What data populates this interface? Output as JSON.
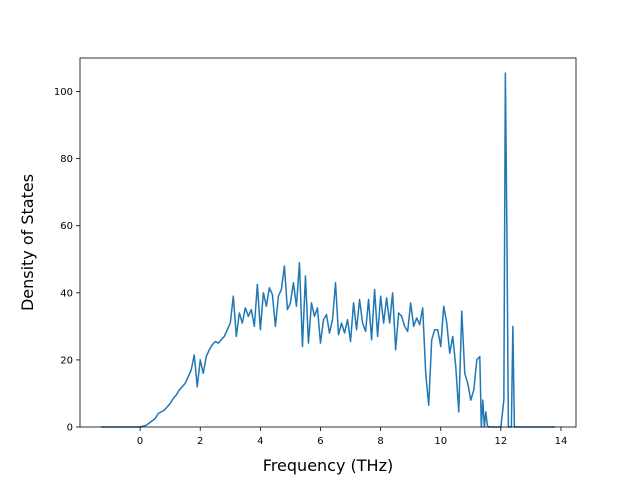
{
  "chart_data": {
    "type": "line",
    "title": "",
    "xlabel": "Frequency (THz)",
    "ylabel": "Density of States",
    "xlim": [
      -2.0,
      14.5
    ],
    "ylim": [
      0,
      110
    ],
    "xticks": [
      0,
      2,
      4,
      6,
      8,
      10,
      12,
      14
    ],
    "xtick_labels": [
      "0",
      "2",
      "4",
      "6",
      "8",
      "10",
      "12",
      "14"
    ],
    "yticks": [
      0,
      20,
      40,
      60,
      80,
      100
    ],
    "ytick_labels": [
      "0",
      "20",
      "40",
      "60",
      "80",
      "100"
    ],
    "grid": false,
    "legend": "none",
    "color": "#1f77b4",
    "series": [
      {
        "x": [
          -1.3,
          -0.2,
          0.0,
          0.2,
          0.35,
          0.5,
          0.6,
          0.7,
          0.8,
          0.9,
          1.0,
          1.1,
          1.2,
          1.3,
          1.4,
          1.5,
          1.6,
          1.7,
          1.8,
          1.9,
          2.0,
          2.1,
          2.2,
          2.3,
          2.4,
          2.5,
          2.6,
          2.7,
          2.8,
          2.9,
          3.0,
          3.1,
          3.2,
          3.3,
          3.4,
          3.5,
          3.6,
          3.7,
          3.8,
          3.9,
          4.0,
          4.1,
          4.2,
          4.3,
          4.4,
          4.5,
          4.6,
          4.7,
          4.8,
          4.9,
          5.0,
          5.1,
          5.2,
          5.3,
          5.4,
          5.5,
          5.6,
          5.7,
          5.8,
          5.9,
          6.0,
          6.1,
          6.2,
          6.3,
          6.4,
          6.5,
          6.6,
          6.7,
          6.8,
          6.9,
          7.0,
          7.1,
          7.2,
          7.3,
          7.4,
          7.5,
          7.6,
          7.7,
          7.8,
          7.9,
          8.0,
          8.1,
          8.2,
          8.3,
          8.4,
          8.5,
          8.6,
          8.7,
          8.8,
          8.9,
          9.0,
          9.1,
          9.2,
          9.3,
          9.4,
          9.5,
          9.6,
          9.7,
          9.8,
          9.9,
          10.0,
          10.1,
          10.2,
          10.3,
          10.4,
          10.5,
          10.6,
          10.7,
          10.8,
          10.9,
          11.0,
          11.1,
          11.2,
          11.3,
          11.35,
          11.4,
          11.45,
          11.5,
          11.55,
          11.6,
          11.65,
          11.7,
          11.75,
          11.8,
          11.85,
          11.9,
          12.0,
          12.1,
          12.15,
          12.2,
          12.25,
          12.3,
          12.35,
          12.4,
          12.45,
          12.5,
          12.55,
          12.6,
          13.0,
          13.5,
          13.8
        ],
        "y": [
          0,
          0,
          0,
          0.5,
          1.5,
          2.5,
          4,
          4.5,
          5,
          6,
          7,
          8.5,
          9.5,
          11,
          12,
          13,
          15,
          17,
          21.5,
          12,
          20,
          16,
          21,
          23,
          24.5,
          25.5,
          25,
          26,
          27,
          29,
          31,
          39,
          27,
          34,
          31,
          35.5,
          33,
          35,
          30,
          42.5,
          29,
          40,
          36,
          41.5,
          39.5,
          30,
          39,
          41,
          48,
          35,
          37,
          43,
          36,
          49,
          24,
          45,
          25,
          37,
          33,
          35.5,
          25,
          32,
          33.5,
          28,
          32,
          43,
          27.5,
          31,
          28,
          32,
          25.5,
          37,
          29,
          38,
          31,
          28.5,
          38,
          26,
          41,
          27,
          39,
          31,
          38.5,
          31,
          40,
          23,
          34,
          33,
          30,
          28.5,
          37,
          30,
          32.5,
          30.5,
          35.5,
          16,
          6.5,
          26,
          29,
          29,
          24,
          36,
          31,
          22,
          27,
          18,
          4.5,
          34.5,
          16,
          13,
          8,
          11,
          20,
          21,
          0,
          8,
          0,
          4.5,
          0.5,
          0,
          0,
          0,
          0,
          0,
          0,
          0,
          0,
          8,
          105.5,
          60,
          0,
          0,
          0,
          30,
          0,
          0,
          0,
          0,
          0,
          0,
          0
        ]
      }
    ]
  }
}
